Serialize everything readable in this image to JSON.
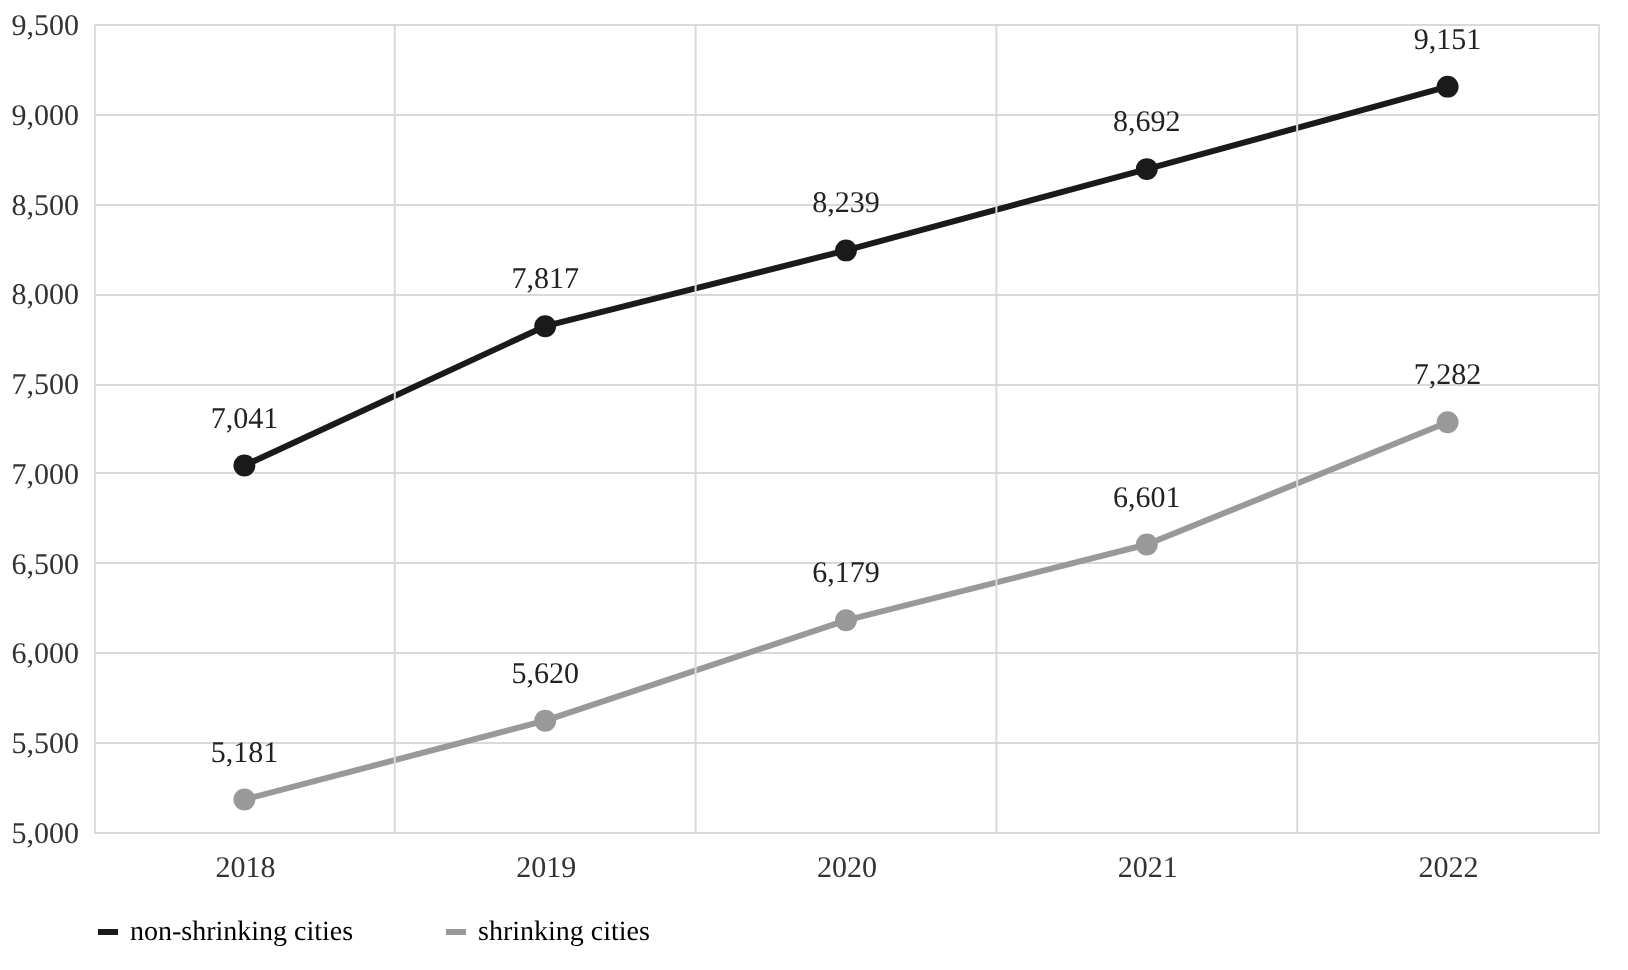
{
  "chart_data": {
    "type": "line",
    "categories": [
      "2018",
      "2019",
      "2020",
      "2021",
      "2022"
    ],
    "series": [
      {
        "name": "non-shrinking cities",
        "color": "#1a1a1a",
        "values": [
          7041,
          7817,
          8239,
          8692,
          9151
        ],
        "value_labels": [
          "7,041",
          "7,817",
          "8,239",
          "8,692",
          "9,151"
        ]
      },
      {
        "name": "shrinking cities",
        "color": "#999999",
        "values": [
          5181,
          5620,
          6179,
          6601,
          7282
        ],
        "value_labels": [
          "5,181",
          "5,620",
          "6,179",
          "6,601",
          "7,282"
        ]
      }
    ],
    "ylim": [
      5000,
      9500
    ],
    "yticks": [
      {
        "value": 5000,
        "label": "5,000"
      },
      {
        "value": 5500,
        "label": "5,500"
      },
      {
        "value": 6000,
        "label": "6,000"
      },
      {
        "value": 6500,
        "label": "6,500"
      },
      {
        "value": 7000,
        "label": "7,000"
      },
      {
        "value": 7500,
        "label": "7,500"
      },
      {
        "value": 8000,
        "label": "8,000"
      },
      {
        "value": 8500,
        "label": "8,500"
      },
      {
        "value": 9000,
        "label": "9,000"
      },
      {
        "value": 9500,
        "label": "9,500"
      }
    ],
    "grid": true,
    "legend": "bottom",
    "marker": "circle",
    "line_style": "solid"
  }
}
